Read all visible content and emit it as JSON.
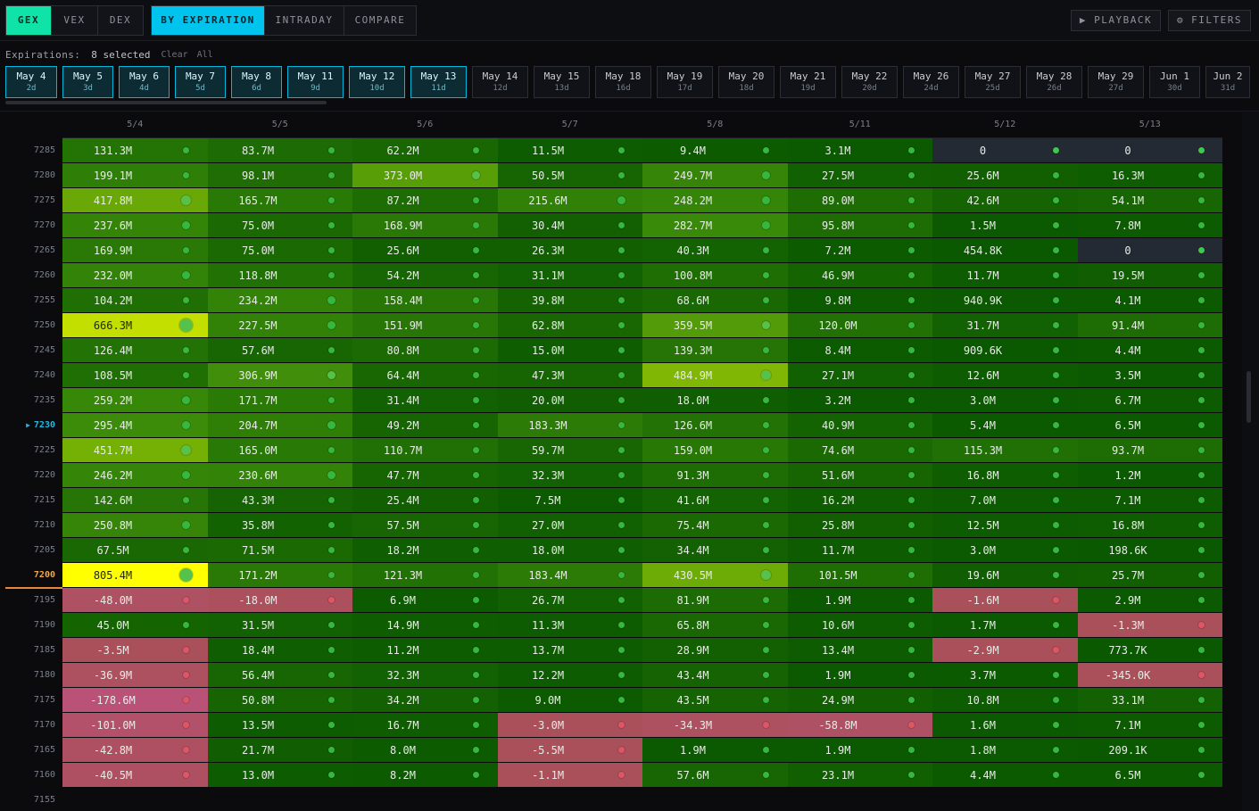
{
  "tabs_mode": [
    {
      "label": "GEX",
      "active": true
    },
    {
      "label": "VEX",
      "active": false
    },
    {
      "label": "DEX",
      "active": false
    }
  ],
  "tabs_view": [
    {
      "label": "BY EXPIRATION",
      "active": true
    },
    {
      "label": "INTRADAY",
      "active": false
    },
    {
      "label": "COMPARE",
      "active": false
    }
  ],
  "toolbar": {
    "playback_label": "▶ PLAYBACK",
    "filters_label": "⚙ FILTERS"
  },
  "expirations": {
    "label": "Expirations:",
    "selected_text": "8 selected",
    "clear_label": "Clear",
    "all_label": "All",
    "items": [
      {
        "name": "May 4",
        "dte": "2d",
        "selected": true
      },
      {
        "name": "May 5",
        "dte": "3d",
        "selected": true
      },
      {
        "name": "May 6",
        "dte": "4d",
        "selected": true
      },
      {
        "name": "May 7",
        "dte": "5d",
        "selected": true
      },
      {
        "name": "May 8",
        "dte": "6d",
        "selected": true
      },
      {
        "name": "May 11",
        "dte": "9d",
        "selected": true
      },
      {
        "name": "May 12",
        "dte": "10d",
        "selected": true
      },
      {
        "name": "May 13",
        "dte": "11d",
        "selected": true
      },
      {
        "name": "May 14",
        "dte": "12d",
        "selected": false
      },
      {
        "name": "May 15",
        "dte": "13d",
        "selected": false
      },
      {
        "name": "May 18",
        "dte": "16d",
        "selected": false
      },
      {
        "name": "May 19",
        "dte": "17d",
        "selected": false
      },
      {
        "name": "May 20",
        "dte": "18d",
        "selected": false
      },
      {
        "name": "May 21",
        "dte": "19d",
        "selected": false
      },
      {
        "name": "May 22",
        "dte": "20d",
        "selected": false
      },
      {
        "name": "May 26",
        "dte": "24d",
        "selected": false
      },
      {
        "name": "May 27",
        "dte": "25d",
        "selected": false
      },
      {
        "name": "May 28",
        "dte": "26d",
        "selected": false
      },
      {
        "name": "May 29",
        "dte": "27d",
        "selected": false
      },
      {
        "name": "Jun 1",
        "dte": "30d",
        "selected": false
      },
      {
        "name": "Jun 2",
        "dte": "31d",
        "selected": false
      }
    ]
  },
  "heatmap": {
    "columns": [
      "5/4",
      "5/5",
      "5/6",
      "5/7",
      "5/8",
      "5/11",
      "5/12",
      "5/13"
    ],
    "current_strike": "7230",
    "spot_strike": "7200",
    "current_marker": "▶",
    "rows": [
      {
        "strike": "7285",
        "values": [
          "131.3M",
          "83.7M",
          "62.2M",
          "11.5M",
          "9.4M",
          "3.1M",
          "0",
          "0"
        ]
      },
      {
        "strike": "7280",
        "values": [
          "199.1M",
          "98.1M",
          "373.0M",
          "50.5M",
          "249.7M",
          "27.5M",
          "25.6M",
          "16.3M"
        ]
      },
      {
        "strike": "7275",
        "values": [
          "417.8M",
          "165.7M",
          "87.2M",
          "215.6M",
          "248.2M",
          "89.0M",
          "42.6M",
          "54.1M"
        ]
      },
      {
        "strike": "7270",
        "values": [
          "237.6M",
          "75.0M",
          "168.9M",
          "30.4M",
          "282.7M",
          "95.8M",
          "1.5M",
          "7.8M"
        ]
      },
      {
        "strike": "7265",
        "values": [
          "169.9M",
          "75.0M",
          "25.6M",
          "26.3M",
          "40.3M",
          "7.2M",
          "454.8K",
          "0"
        ]
      },
      {
        "strike": "7260",
        "values": [
          "232.0M",
          "118.8M",
          "54.2M",
          "31.1M",
          "100.8M",
          "46.9M",
          "11.7M",
          "19.5M"
        ]
      },
      {
        "strike": "7255",
        "values": [
          "104.2M",
          "234.2M",
          "158.4M",
          "39.8M",
          "68.6M",
          "9.8M",
          "940.9K",
          "4.1M"
        ]
      },
      {
        "strike": "7250",
        "values": [
          "666.3M",
          "227.5M",
          "151.9M",
          "62.8M",
          "359.5M",
          "120.0M",
          "31.7M",
          "91.4M"
        ]
      },
      {
        "strike": "7245",
        "values": [
          "126.4M",
          "57.6M",
          "80.8M",
          "15.0M",
          "139.3M",
          "8.4M",
          "909.6K",
          "4.4M"
        ]
      },
      {
        "strike": "7240",
        "values": [
          "108.5M",
          "306.9M",
          "64.4M",
          "47.3M",
          "484.9M",
          "27.1M",
          "12.6M",
          "3.5M"
        ]
      },
      {
        "strike": "7235",
        "values": [
          "259.2M",
          "171.7M",
          "31.4M",
          "20.0M",
          "18.0M",
          "3.2M",
          "3.0M",
          "6.7M"
        ]
      },
      {
        "strike": "7230",
        "values": [
          "295.4M",
          "204.7M",
          "49.2M",
          "183.3M",
          "126.6M",
          "40.9M",
          "5.4M",
          "6.5M"
        ]
      },
      {
        "strike": "7225",
        "values": [
          "451.7M",
          "165.0M",
          "110.7M",
          "59.7M",
          "159.0M",
          "74.6M",
          "115.3M",
          "93.7M"
        ]
      },
      {
        "strike": "7220",
        "values": [
          "246.2M",
          "230.6M",
          "47.7M",
          "32.3M",
          "91.3M",
          "51.6M",
          "16.8M",
          "1.2M"
        ]
      },
      {
        "strike": "7215",
        "values": [
          "142.6M",
          "43.3M",
          "25.4M",
          "7.5M",
          "41.6M",
          "16.2M",
          "7.0M",
          "7.1M"
        ]
      },
      {
        "strike": "7210",
        "values": [
          "250.8M",
          "35.8M",
          "57.5M",
          "27.0M",
          "75.4M",
          "25.8M",
          "12.5M",
          "16.8M"
        ]
      },
      {
        "strike": "7205",
        "values": [
          "67.5M",
          "71.5M",
          "18.2M",
          "18.0M",
          "34.4M",
          "11.7M",
          "3.0M",
          "198.6K"
        ]
      },
      {
        "strike": "7200",
        "values": [
          "805.4M",
          "171.2M",
          "121.3M",
          "183.4M",
          "430.5M",
          "101.5M",
          "19.6M",
          "25.7M"
        ]
      },
      {
        "strike": "7195",
        "values": [
          "-48.0M",
          "-18.0M",
          "6.9M",
          "26.7M",
          "81.9M",
          "1.9M",
          "-1.6M",
          "2.9M"
        ]
      },
      {
        "strike": "7190",
        "values": [
          "45.0M",
          "31.5M",
          "14.9M",
          "11.3M",
          "65.8M",
          "10.6M",
          "1.7M",
          "-1.3M"
        ]
      },
      {
        "strike": "7185",
        "values": [
          "-3.5M",
          "18.4M",
          "11.2M",
          "13.7M",
          "28.9M",
          "13.4M",
          "-2.9M",
          "773.7K"
        ]
      },
      {
        "strike": "7180",
        "values": [
          "-36.9M",
          "56.4M",
          "32.3M",
          "12.2M",
          "43.4M",
          "1.9M",
          "3.7M",
          "-345.0K"
        ]
      },
      {
        "strike": "7175",
        "values": [
          "-178.6M",
          "50.8M",
          "34.2M",
          "9.0M",
          "43.5M",
          "24.9M",
          "10.8M",
          "33.1M"
        ]
      },
      {
        "strike": "7170",
        "values": [
          "-101.0M",
          "13.5M",
          "16.7M",
          "-3.0M",
          "-34.3M",
          "-58.8M",
          "1.6M",
          "7.1M"
        ]
      },
      {
        "strike": "7165",
        "values": [
          "-42.8M",
          "21.7M",
          "8.0M",
          "-5.5M",
          "1.9M",
          "1.9M",
          "1.8M",
          "209.1K"
        ]
      },
      {
        "strike": "7160",
        "values": [
          "-40.5M",
          "13.0M",
          "8.2M",
          "-1.1M",
          "57.6M",
          "23.1M",
          "4.4M",
          "6.5M"
        ]
      },
      {
        "strike": "7155",
        "values": [
          "",
          "",
          "",
          "",
          "",
          "",
          "",
          ""
        ]
      }
    ]
  }
}
